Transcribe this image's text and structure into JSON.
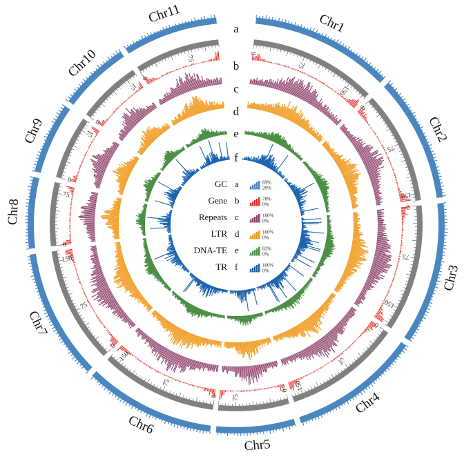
{
  "chromosomes": [
    {
      "name": "Chr1",
      "length": 180,
      "ticks": [
        0,
        75,
        150
      ]
    },
    {
      "name": "Chr2",
      "length": 160,
      "ticks": [
        0,
        75,
        150
      ]
    },
    {
      "name": "Chr3",
      "length": 180,
      "ticks": [
        0,
        75,
        150
      ]
    },
    {
      "name": "Chr4",
      "length": 165,
      "ticks": [
        0,
        75,
        150
      ]
    },
    {
      "name": "Chr5",
      "length": 100,
      "ticks": [
        0,
        75
      ]
    },
    {
      "name": "Chr6",
      "length": 165,
      "ticks": [
        0,
        75,
        150
      ]
    },
    {
      "name": "Chr7",
      "length": 165,
      "ticks": [
        0,
        75,
        150
      ]
    },
    {
      "name": "Chr8",
      "length": 90,
      "ticks": [
        0,
        75
      ]
    },
    {
      "name": "Chr9",
      "length": 90,
      "ticks": [
        0,
        75
      ]
    },
    {
      "name": "Chr10",
      "length": 90,
      "ticks": [
        0,
        75
      ]
    },
    {
      "name": "Chr11",
      "length": 120,
      "ticks": [
        0,
        75
      ]
    }
  ],
  "tracks": [
    {
      "letter": "a",
      "name": "GC",
      "max": "69%",
      "min": "20%",
      "color": "#4a86bf"
    },
    {
      "letter": "b",
      "name": "Gene",
      "max": "78%",
      "min": "0%",
      "color": "#e8312a"
    },
    {
      "letter": "c",
      "name": "Repeats",
      "max": "100%",
      "min": "0%",
      "color": "#8c3d67"
    },
    {
      "letter": "d",
      "name": "LTR",
      "max": "100%",
      "min": "0%",
      "color": "#f0991c"
    },
    {
      "letter": "e",
      "name": "DNA-TE",
      "max": "82%",
      "min": "0%",
      "color": "#4c8f46"
    },
    {
      "letter": "f",
      "name": "TR",
      "max": "100%",
      "min": "0%",
      "color": "#1d64b0"
    }
  ],
  "colors": {
    "ideogram": "#808080",
    "gc_band": "#4a86bf"
  }
}
